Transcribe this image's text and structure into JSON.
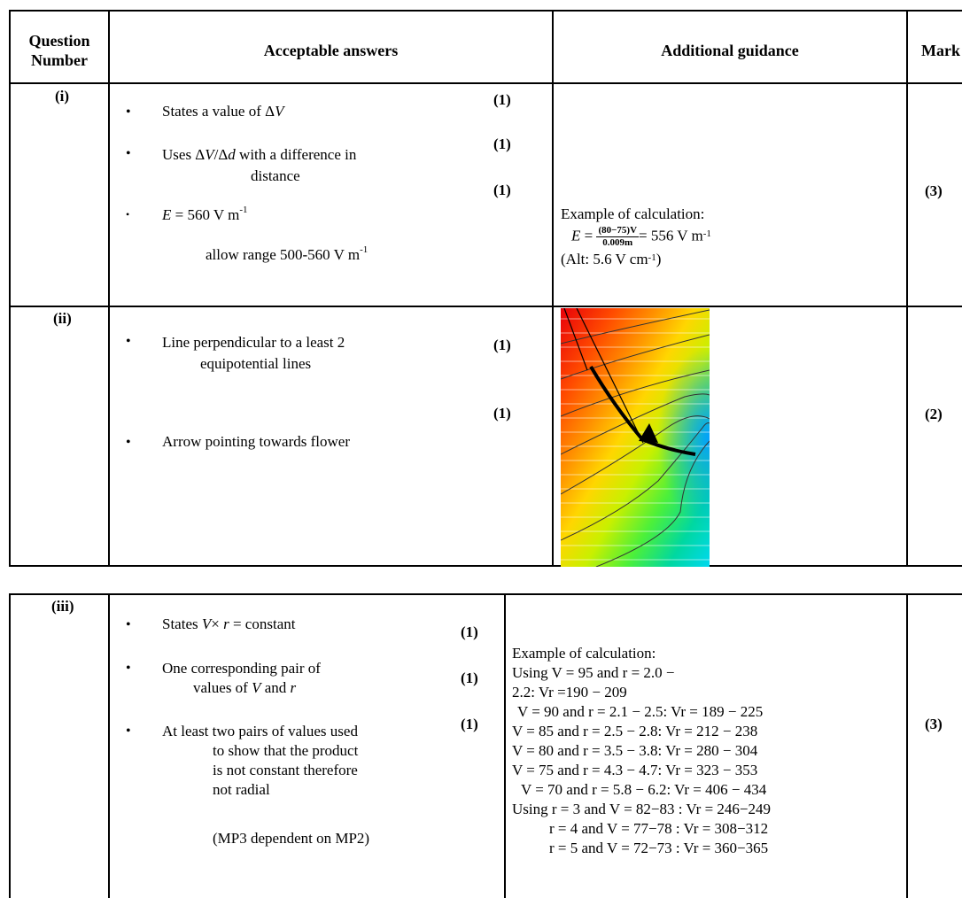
{
  "table1": {
    "headers": {
      "question_number_line1": "Question",
      "question_number_line2": "Number",
      "acceptable_answers": "Acceptable answers",
      "additional_guidance": "Additional guidance",
      "mark": "Mark"
    },
    "row_i": {
      "number": "(i)",
      "answers": [
        {
          "bullet": "•",
          "text_pre": "States a value of Δ",
          "text_var": "V",
          "mark": "(1)"
        },
        {
          "bullet": "•",
          "line1_pre": "Uses Δ",
          "line1_var1": "V",
          "line1_mid": "/Δ",
          "line1_var2": "d",
          "line1_post": " with a difference in",
          "line2": "distance",
          "mark": "(1)"
        },
        {
          "bullet": "•",
          "var": "E",
          "text": " = 560 V m",
          "sup": "-1",
          "mark": "(1)"
        }
      ],
      "allow_range": "allow range 500-560 V m",
      "allow_range_sup": "-1",
      "guidance": {
        "line1": "Example of calculation:",
        "eq_lhs": "E",
        "eq_eq": " = ",
        "frac_num": "(80−75)V",
        "frac_den": "0.009m",
        "eq_rhs": "= 556 V m",
        "eq_sup": "-1",
        "alt_pre": "(Alt:  5.6 V cm",
        "alt_sup": "-1",
        "alt_post": ")"
      },
      "total_mark": "(3)"
    },
    "row_ii": {
      "number": "(ii)",
      "answers": [
        {
          "bullet": "•",
          "line1": "Line perpendicular to a least 2",
          "line2": "equipotential lines",
          "mark": "(1)"
        },
        {
          "bullet": "•",
          "line1": "Arrow pointing towards flower",
          "mark": "(1)"
        }
      ],
      "total_mark": "(2)"
    }
  },
  "table2": {
    "row_iii": {
      "number": "(iii)",
      "answers": [
        {
          "bullet": "•",
          "pre": "States ",
          "v1": "V",
          "mid": "× ",
          "v2": "r",
          "post": " = constant",
          "mark": "(1)"
        },
        {
          "bullet": "•",
          "line1": "One corresponding pair of",
          "line2_pre": "values of ",
          "line2_v1": "V",
          "line2_mid": " and ",
          "line2_v2": "r",
          "mark": "(1)"
        },
        {
          "bullet": "•",
          "line1": "At least two pairs of values used",
          "line2": "to show that the product",
          "line3": "is not constant therefore",
          "line4": "not radial",
          "mark": "(1)"
        }
      ],
      "dependency_note": "(MP3 dependent on MP2)",
      "guidance": [
        "Example of calculation:",
        "Using V = 95 and r = 2.0 −",
        "2.2: Vr =190 − 209",
        "V = 90 and r = 2.1 − 2.5: Vr = 189 − 225",
        "V = 85 and r = 2.5 − 2.8: Vr = 212 − 238",
        "V = 80 and r = 3.5 − 3.8: Vr = 280 − 304",
        "V = 75 and r = 4.3 − 4.7: Vr = 323 − 353",
        "V = 70 and r = 5.8 − 6.2: Vr = 406 − 434",
        "Using r = 3 and V = 82−83 : Vr = 246−249",
        "r = 4 and V = 77−78 : Vr = 308−312",
        "r = 5 and V = 72−73 : Vr = 360−365"
      ],
      "total_mark": "(3)"
    }
  },
  "colors": {
    "border": "#000000",
    "text": "#000000"
  }
}
